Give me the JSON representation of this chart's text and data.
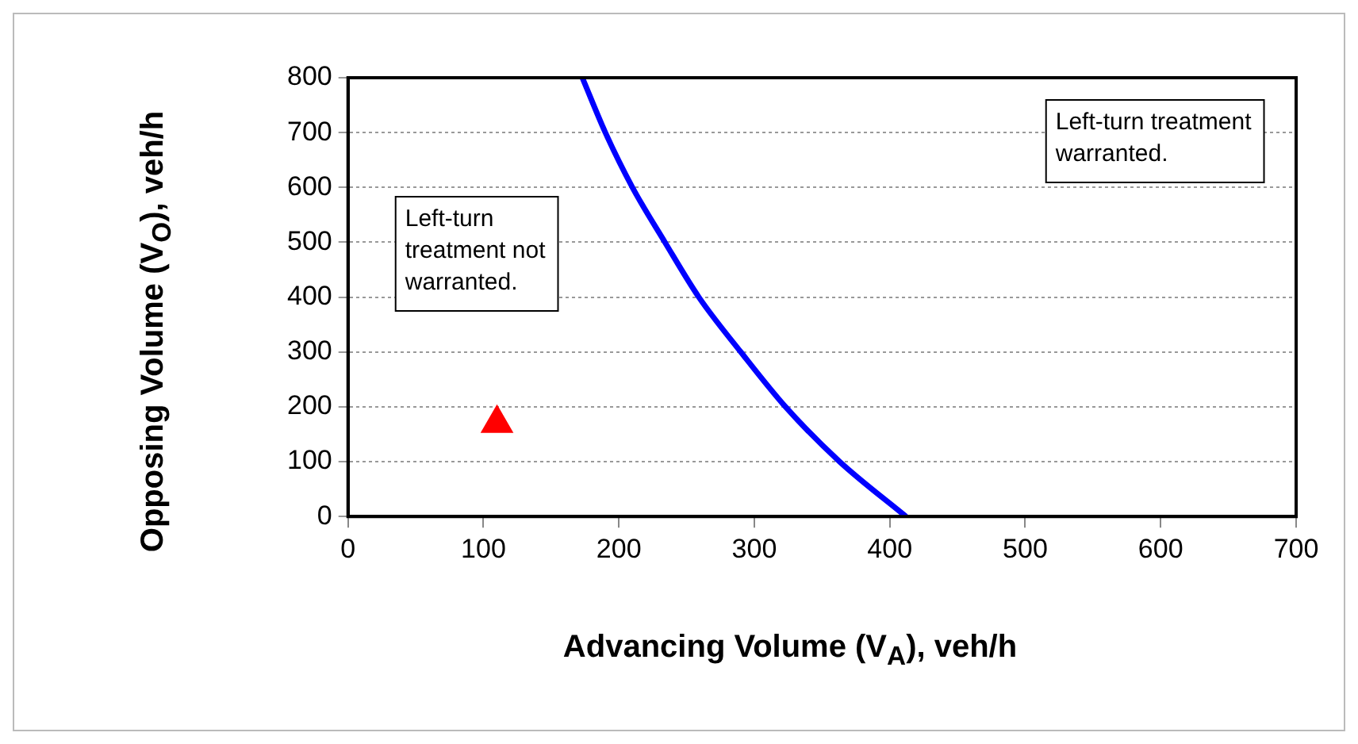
{
  "chart_data": {
    "type": "line",
    "xlabel": "Advancing Volume (V$_{A}$), veh/h",
    "ylabel": "Opposing Volume (V$_{O}$), veh/h",
    "xlim": [
      0,
      700
    ],
    "xticks": [
      0,
      100,
      200,
      300,
      400,
      500,
      600,
      700
    ],
    "ylim": [
      0,
      800
    ],
    "yticks": [
      0,
      100,
      200,
      300,
      400,
      500,
      600,
      700,
      800
    ],
    "grid": "y",
    "legend": false,
    "series": [
      {
        "color": "#0000ff",
        "marker": "none",
        "line_style": "solid",
        "x": [
          173,
          190,
          210,
          234,
          259,
          290,
          323,
          363,
          412
        ],
        "values": [
          800,
          700,
          600,
          500,
          400,
          300,
          200,
          100,
          0
        ]
      },
      {
        "type": "scatter",
        "color": "#ff0000",
        "marker": "triangle",
        "x": [
          110
        ],
        "values": [
          170
        ]
      }
    ],
    "annotations": [
      "Left-turn treatment not warranted.",
      "Left-turn treatment warranted."
    ]
  }
}
